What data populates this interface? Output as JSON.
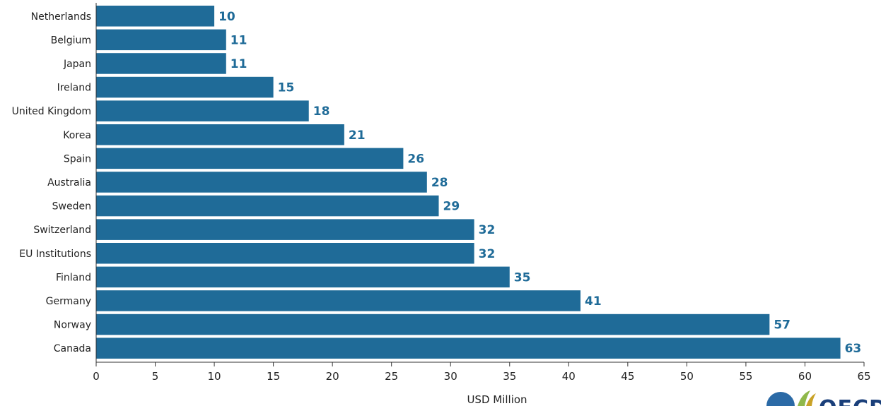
{
  "chart_data": {
    "type": "bar",
    "orientation": "horizontal",
    "categories": [
      "Netherlands",
      "Belgium",
      "Japan",
      "Ireland",
      "United Kingdom",
      "Korea",
      "Spain",
      "Australia",
      "Sweden",
      "Switzerland",
      "EU Institutions",
      "Finland",
      "Germany",
      "Norway",
      "Canada"
    ],
    "values": [
      10,
      11,
      11,
      15,
      18,
      21,
      26,
      28,
      29,
      32,
      32,
      35,
      41,
      57,
      63
    ],
    "title": "",
    "xlabel": "USD Million",
    "ylabel": "",
    "xlim": [
      0,
      65
    ],
    "xticks": [
      0,
      5,
      10,
      15,
      20,
      25,
      30,
      35,
      40,
      45,
      50,
      55,
      60,
      65
    ],
    "data_labels": true,
    "grid": false,
    "colors": {
      "bar": "#1f6b98",
      "value_label": "#1f6b98",
      "axis": "#333333"
    }
  },
  "logo": {
    "text": "OECD"
  }
}
